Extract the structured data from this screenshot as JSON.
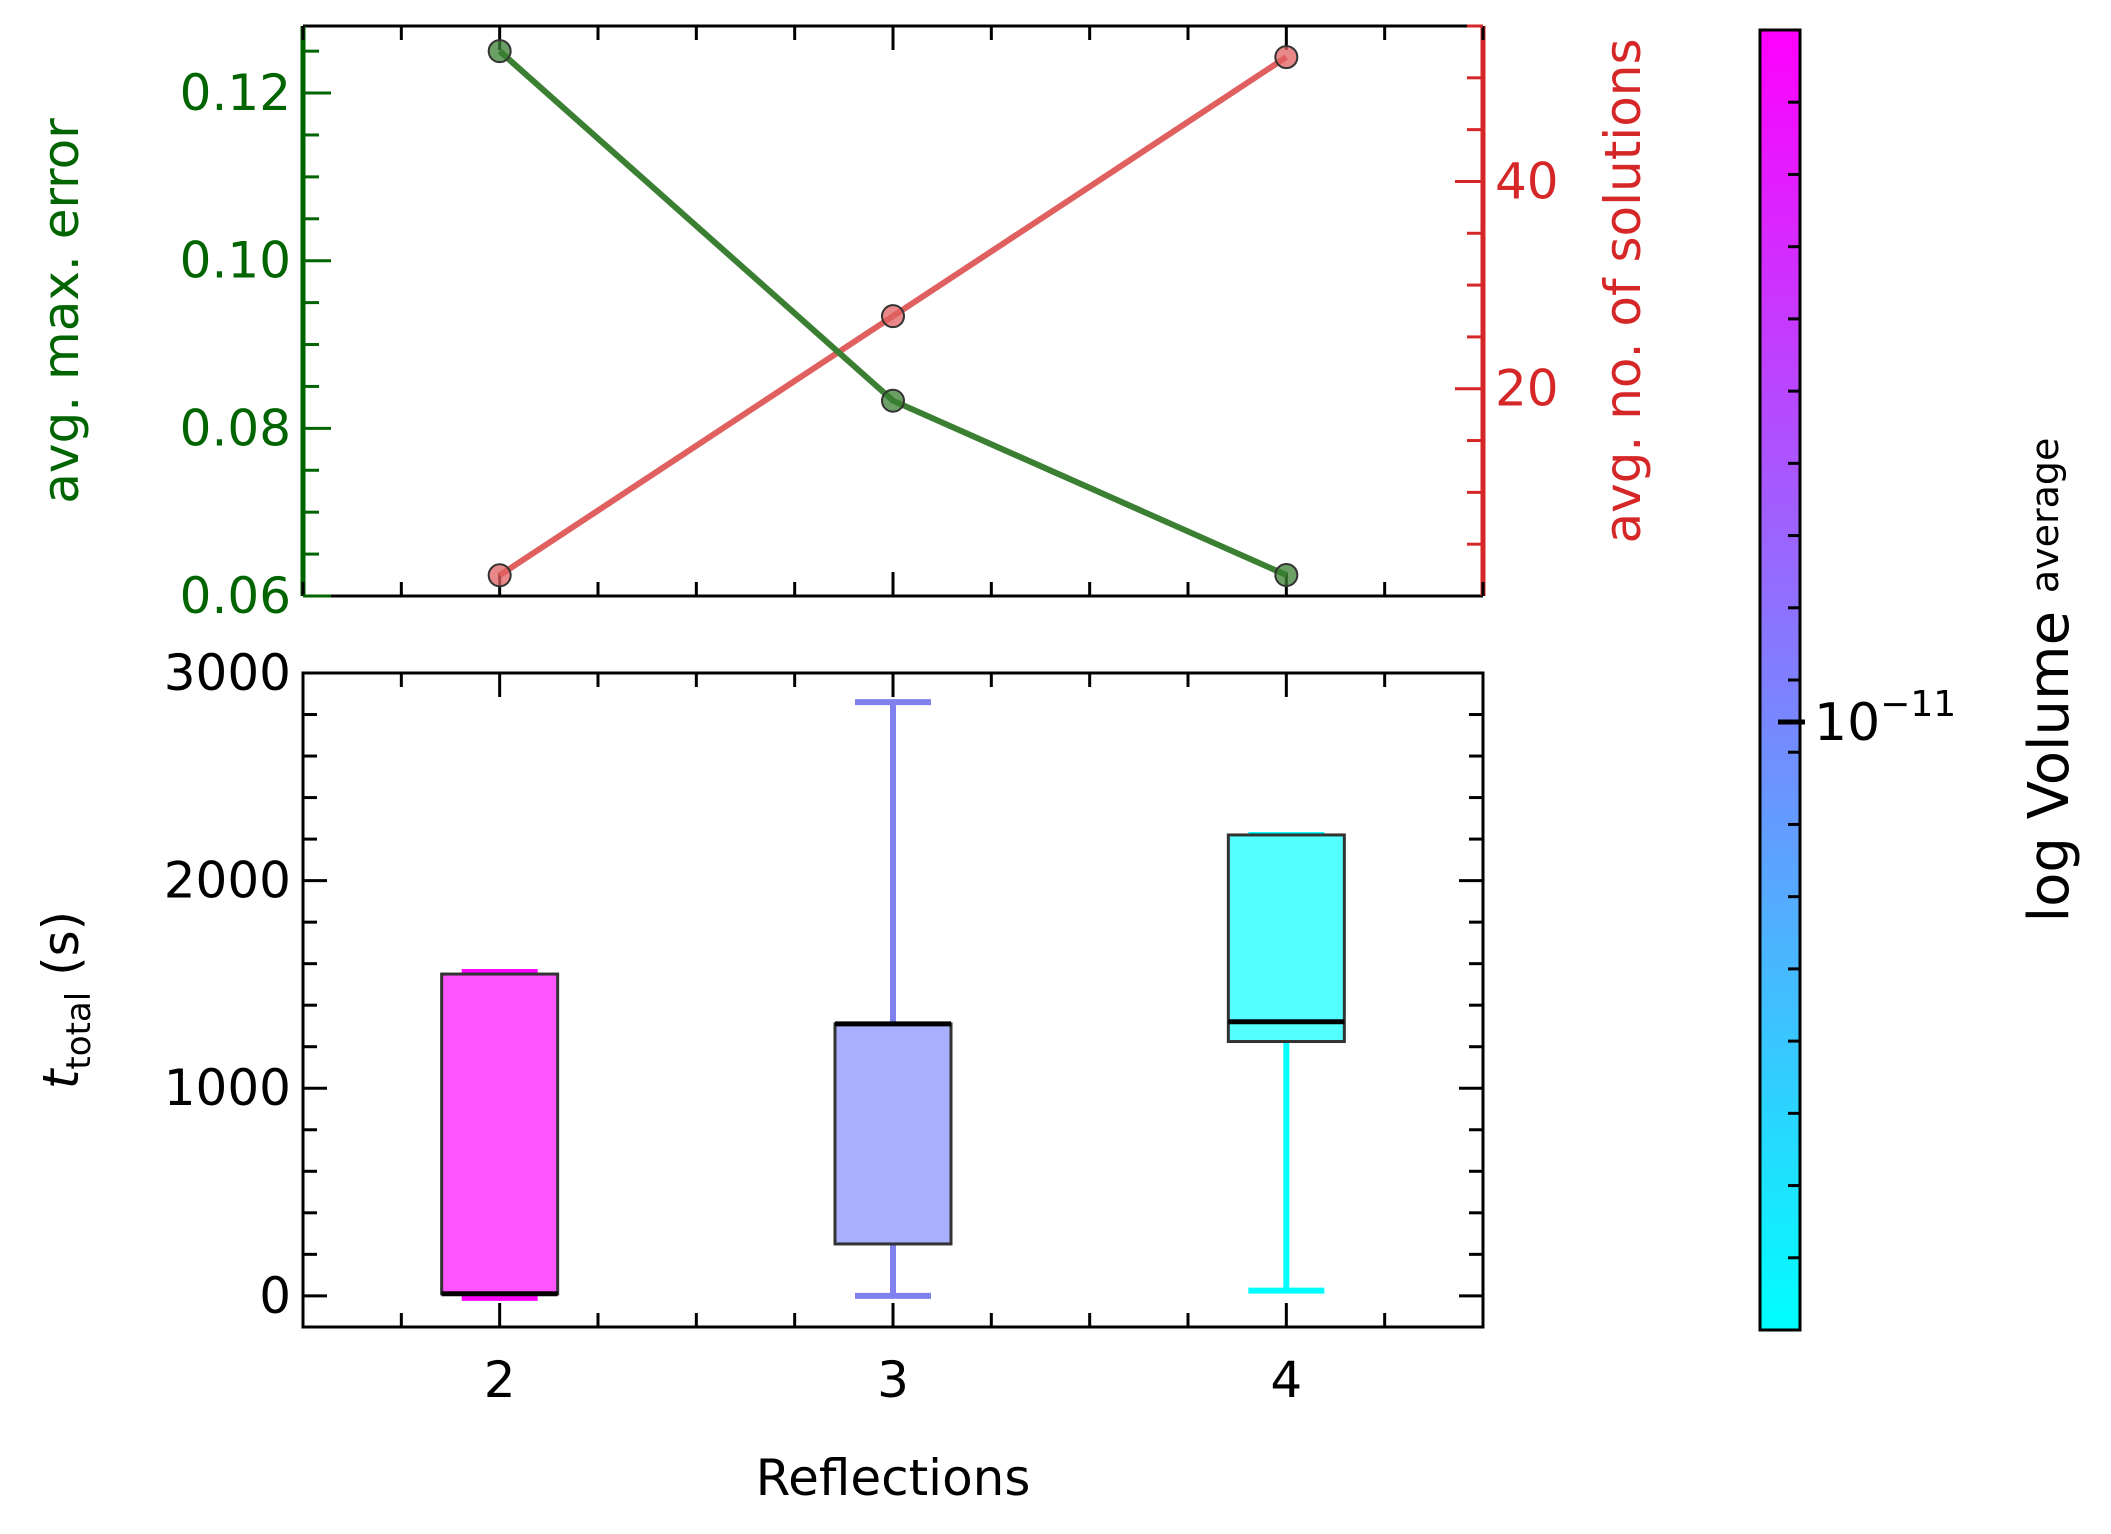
{
  "colors": {
    "error_axis": "#006400",
    "error_line": "#3a7f32",
    "solutions_axis": "#d62728",
    "solutions_line": "#e06060",
    "axis": "#000000",
    "colorbar_low": "#00ffff",
    "colorbar_high": "#ff00ff"
  },
  "chart_data": [
    {
      "type": "line",
      "id": "top",
      "x": [
        2,
        3,
        4
      ],
      "xlim": [
        1.5,
        4.5
      ],
      "y_left": {
        "label": "avg. max. error",
        "values": [
          0.125,
          0.0833,
          0.0625
        ],
        "ylim": [
          0.06,
          0.128
        ],
        "ticks": [
          0.06,
          0.08,
          0.1,
          0.12
        ],
        "tick_labels": [
          "0.06",
          "0.08",
          "0.10",
          "0.12"
        ]
      },
      "y_right": {
        "label": "avg. no. of solutions",
        "values": [
          2,
          27,
          52
        ],
        "ylim": [
          0,
          55
        ],
        "ticks": [
          20,
          40
        ],
        "tick_labels": [
          "20",
          "40"
        ]
      }
    },
    {
      "type": "box",
      "id": "bottom",
      "categories": [
        2,
        3,
        4
      ],
      "xlim": [
        1.5,
        4.5
      ],
      "xlabel": "Reflections",
      "ylabel_main": "t",
      "ylabel_sub": "total",
      "ylabel_unit": "(s)",
      "ylim": [
        -150,
        3000
      ],
      "yticks": [
        0,
        1000,
        2000,
        3000
      ],
      "ytick_labels": [
        "0",
        "1000",
        "2000",
        "3000"
      ],
      "xtick_labels": [
        "2",
        "3",
        "4"
      ],
      "boxes": [
        {
          "x": 2,
          "whisker_low": -10,
          "q1": 10,
          "median": 10,
          "q3": 1550,
          "whisker_high": 1560,
          "color": "#ff55ff",
          "whisker_color": "#ff00ff"
        },
        {
          "x": 3,
          "whisker_low": 0,
          "q1": 250,
          "median": 1310,
          "q3": 1310,
          "whisker_high": 2860,
          "color": "#aab0ff",
          "whisker_color": "#8080ee"
        },
        {
          "x": 4,
          "whisker_low": 25,
          "q1": 1225,
          "median": 1320,
          "q3": 2220,
          "whisker_high": 2220,
          "color": "#55ffff",
          "whisker_color": "#00ffff"
        }
      ]
    },
    {
      "type": "colorbar",
      "id": "colorbar",
      "label_main": "log Volume",
      "label_sub": "average",
      "tick_base": "10",
      "tick_exp": "−11",
      "tick_fraction": 0.94
    }
  ]
}
